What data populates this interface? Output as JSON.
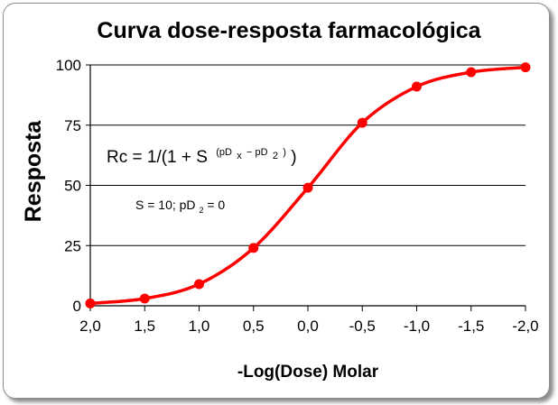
{
  "chart_data": {
    "type": "line",
    "title": "Curva dose-resposta farmacológica",
    "xlabel": "-Log(Dose) Molar",
    "ylabel": "Resposta",
    "x_tick_labels": [
      "2,0",
      "1,5",
      "1,0",
      "0,5",
      "0,0",
      "-0,5",
      "-1,0",
      "-1,5",
      "-2,0"
    ],
    "y_tick_labels": [
      "0",
      "25",
      "50",
      "75",
      "100"
    ],
    "xlim": [
      2.0,
      -2.0
    ],
    "ylim": [
      0,
      100
    ],
    "x_reversed": true,
    "grid": "horizontal",
    "legend": "none",
    "color": "#ff0000",
    "series": [
      {
        "x": [
          2.0,
          1.5,
          1.0,
          0.5,
          0.0,
          -0.5,
          -1.0,
          -1.5,
          -2.0
        ],
        "values": [
          1,
          3,
          9,
          24,
          49,
          76,
          91,
          97,
          99
        ]
      }
    ],
    "annotations": {
      "equation": {
        "main": "Rc = 1/(1 + S",
        "exp_open": "(pD",
        "exp_sub1": "x",
        "exp_mid": " − pD",
        "exp_sub2": "2",
        "exp_close": ")",
        "tail": ")"
      },
      "note": {
        "part1": "S = 10; pD",
        "sub": "2",
        "part2": "= 0"
      }
    }
  }
}
